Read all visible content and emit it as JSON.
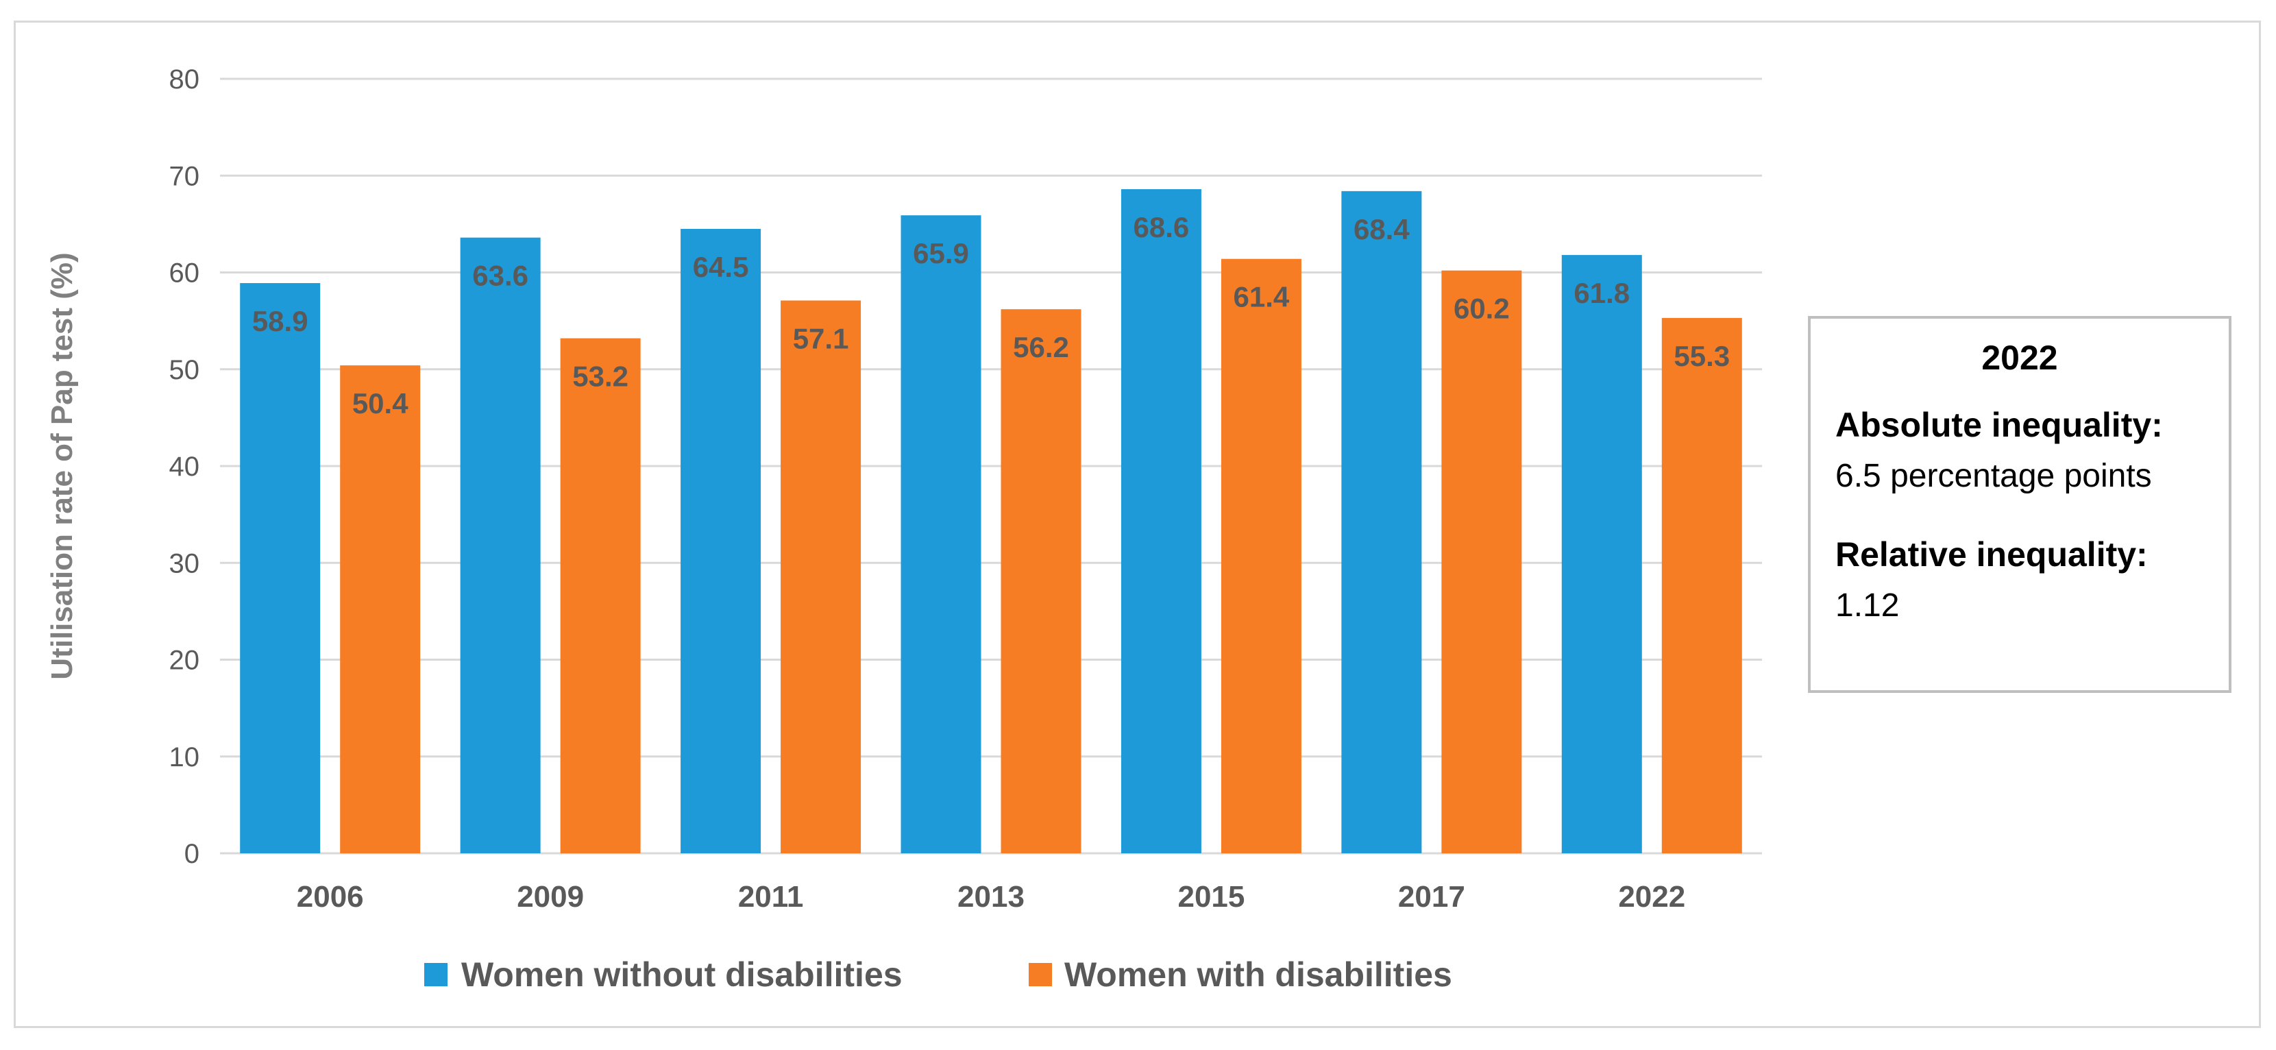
{
  "chart_data": {
    "type": "bar",
    "title": "",
    "xlabel": "",
    "ylabel": "Utilisation rate of Pap test (%)",
    "ylim": [
      0,
      80
    ],
    "yticks": [
      0,
      10,
      20,
      30,
      40,
      50,
      60,
      70,
      80
    ],
    "grid": true,
    "legend_position": "bottom",
    "categories": [
      "2006",
      "2009",
      "2011",
      "2013",
      "2015",
      "2017",
      "2022"
    ],
    "series": [
      {
        "name": "Women without disabilities",
        "color": "#1f9ad8",
        "values": [
          58.9,
          63.6,
          64.5,
          65.9,
          68.6,
          68.4,
          61.8
        ]
      },
      {
        "name": "Women with disabilities",
        "color": "#f77d24",
        "values": [
          50.4,
          53.2,
          57.1,
          56.2,
          61.4,
          60.2,
          55.3
        ]
      }
    ]
  },
  "info_box": {
    "year": "2022",
    "absolute_label": "Absolute inequality:",
    "absolute_value": "6.5 percentage points",
    "relative_label": "Relative inequality:",
    "relative_value": "1.12"
  }
}
